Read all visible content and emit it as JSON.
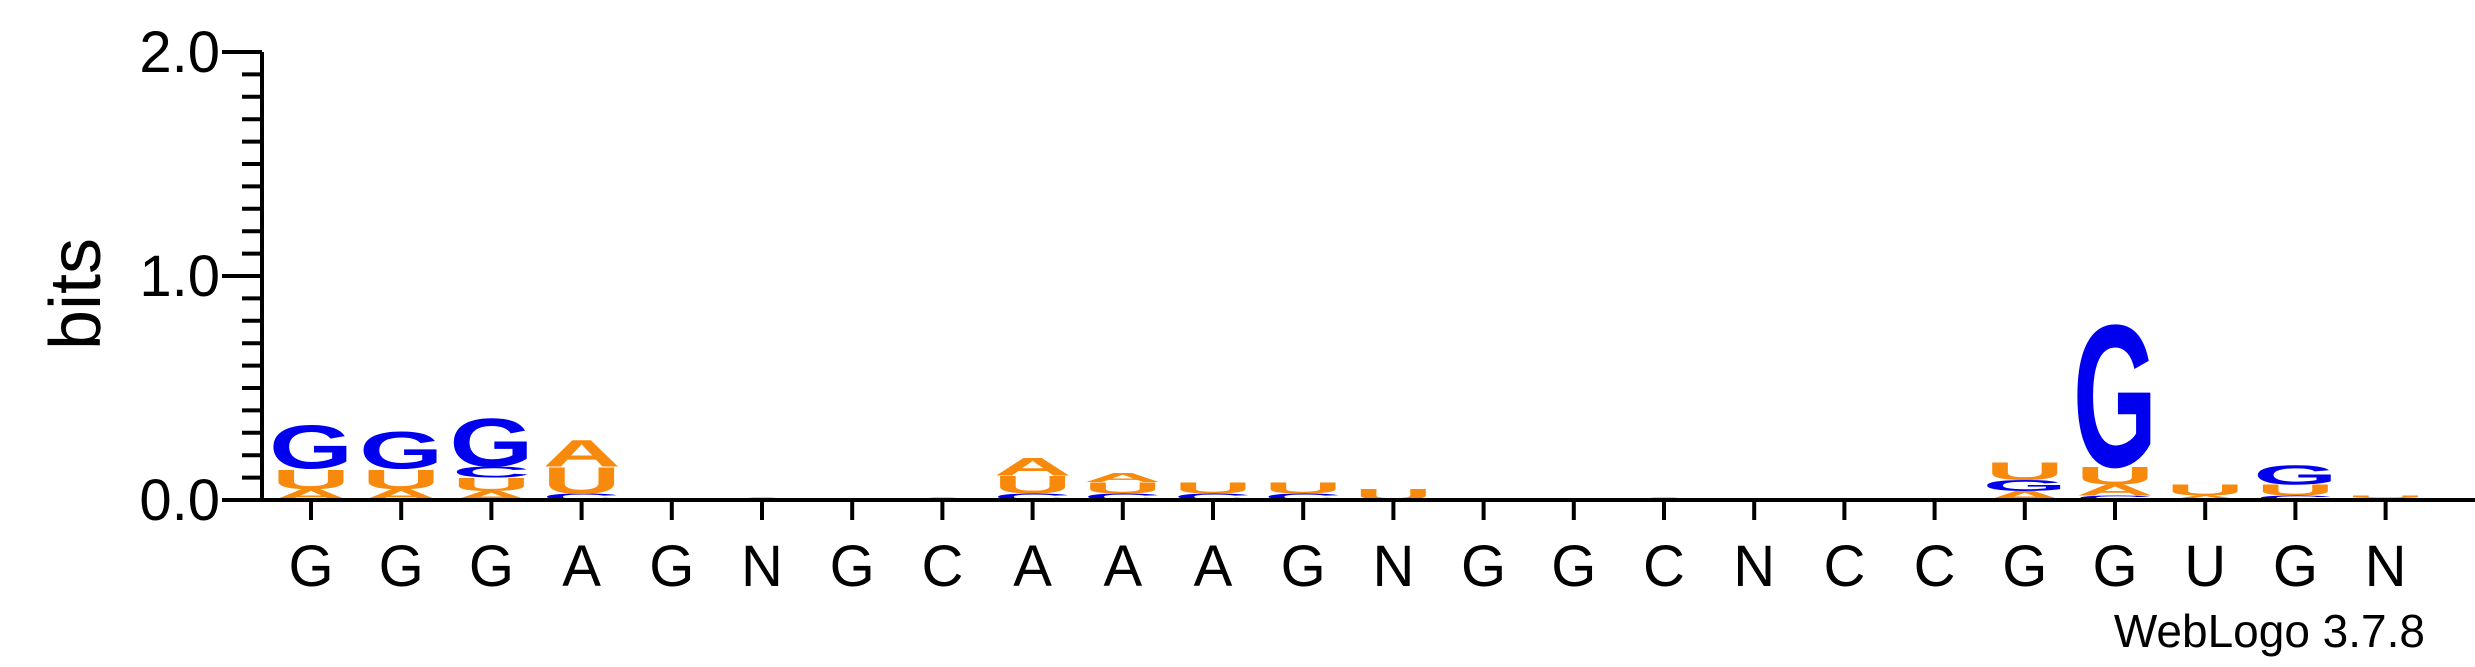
{
  "chart_data": {
    "type": "sequence-logo",
    "ylabel": "bits",
    "ylim": [
      0,
      2.0
    ],
    "yticks": [
      "0.0",
      "1.0",
      "2.0"
    ],
    "credit": "WebLogo 3.7.8",
    "colors": {
      "G": "#0000ee",
      "C": "#0000ee",
      "A": "#f7890c",
      "U": "#f7890c"
    },
    "positions": [
      {
        "label": "G",
        "stack": [
          {
            "letter": "A",
            "bits": 0.05
          },
          {
            "letter": "U",
            "bits": 0.09
          },
          {
            "letter": "G",
            "bits": 0.2
          }
        ]
      },
      {
        "label": "G",
        "stack": [
          {
            "letter": "A",
            "bits": 0.05
          },
          {
            "letter": "U",
            "bits": 0.09
          },
          {
            "letter": "G",
            "bits": 0.17
          }
        ]
      },
      {
        "label": "G",
        "stack": [
          {
            "letter": "A",
            "bits": 0.04
          },
          {
            "letter": "U",
            "bits": 0.06
          },
          {
            "letter": "C",
            "bits": 0.05
          },
          {
            "letter": "G",
            "bits": 0.22
          }
        ]
      },
      {
        "label": "A",
        "stack": [
          {
            "letter": "C",
            "bits": 0.03
          },
          {
            "letter": "U",
            "bits": 0.12
          },
          {
            "letter": "A",
            "bits": 0.12
          }
        ]
      },
      {
        "label": "G",
        "stack": []
      },
      {
        "label": "N",
        "stack": [
          {
            "letter": "A",
            "bits": 0.01
          }
        ]
      },
      {
        "label": "G",
        "stack": []
      },
      {
        "label": "C",
        "stack": [
          {
            "letter": "A",
            "bits": 0.01
          }
        ]
      },
      {
        "label": "A",
        "stack": [
          {
            "letter": "C",
            "bits": 0.03
          },
          {
            "letter": "U",
            "bits": 0.08
          },
          {
            "letter": "A",
            "bits": 0.08
          }
        ]
      },
      {
        "label": "A",
        "stack": [
          {
            "letter": "C",
            "bits": 0.03
          },
          {
            "letter": "U",
            "bits": 0.05
          },
          {
            "letter": "A",
            "bits": 0.04
          }
        ]
      },
      {
        "label": "A",
        "stack": [
          {
            "letter": "C",
            "bits": 0.03
          },
          {
            "letter": "U",
            "bits": 0.05
          }
        ]
      },
      {
        "label": "G",
        "stack": [
          {
            "letter": "C",
            "bits": 0.03
          },
          {
            "letter": "U",
            "bits": 0.05
          }
        ]
      },
      {
        "label": "N",
        "stack": [
          {
            "letter": "U",
            "bits": 0.05
          }
        ]
      },
      {
        "label": "G",
        "stack": []
      },
      {
        "label": "G",
        "stack": []
      },
      {
        "label": "C",
        "stack": [
          {
            "letter": "A",
            "bits": 0.01
          }
        ]
      },
      {
        "label": "N",
        "stack": []
      },
      {
        "label": "C",
        "stack": []
      },
      {
        "label": "C",
        "stack": []
      },
      {
        "label": "G",
        "stack": [
          {
            "letter": "A",
            "bits": 0.04
          },
          {
            "letter": "G",
            "bits": 0.05
          },
          {
            "letter": "U",
            "bits": 0.08
          }
        ]
      },
      {
        "label": "G",
        "stack": [
          {
            "letter": "C",
            "bits": 0.02
          },
          {
            "letter": "A",
            "bits": 0.05
          },
          {
            "letter": "U",
            "bits": 0.08
          },
          {
            "letter": "G",
            "bits": 0.65
          }
        ]
      },
      {
        "label": "U",
        "stack": [
          {
            "letter": "A",
            "bits": 0.02
          },
          {
            "letter": "U",
            "bits": 0.05
          }
        ]
      },
      {
        "label": "G",
        "stack": [
          {
            "letter": "C",
            "bits": 0.02
          },
          {
            "letter": "U",
            "bits": 0.05
          },
          {
            "letter": "G",
            "bits": 0.09
          }
        ]
      },
      {
        "label": "N",
        "stack": [
          {
            "letter": "A",
            "bits": 0.01
          },
          {
            "letter": "U",
            "bits": 0.01
          }
        ]
      }
    ]
  }
}
